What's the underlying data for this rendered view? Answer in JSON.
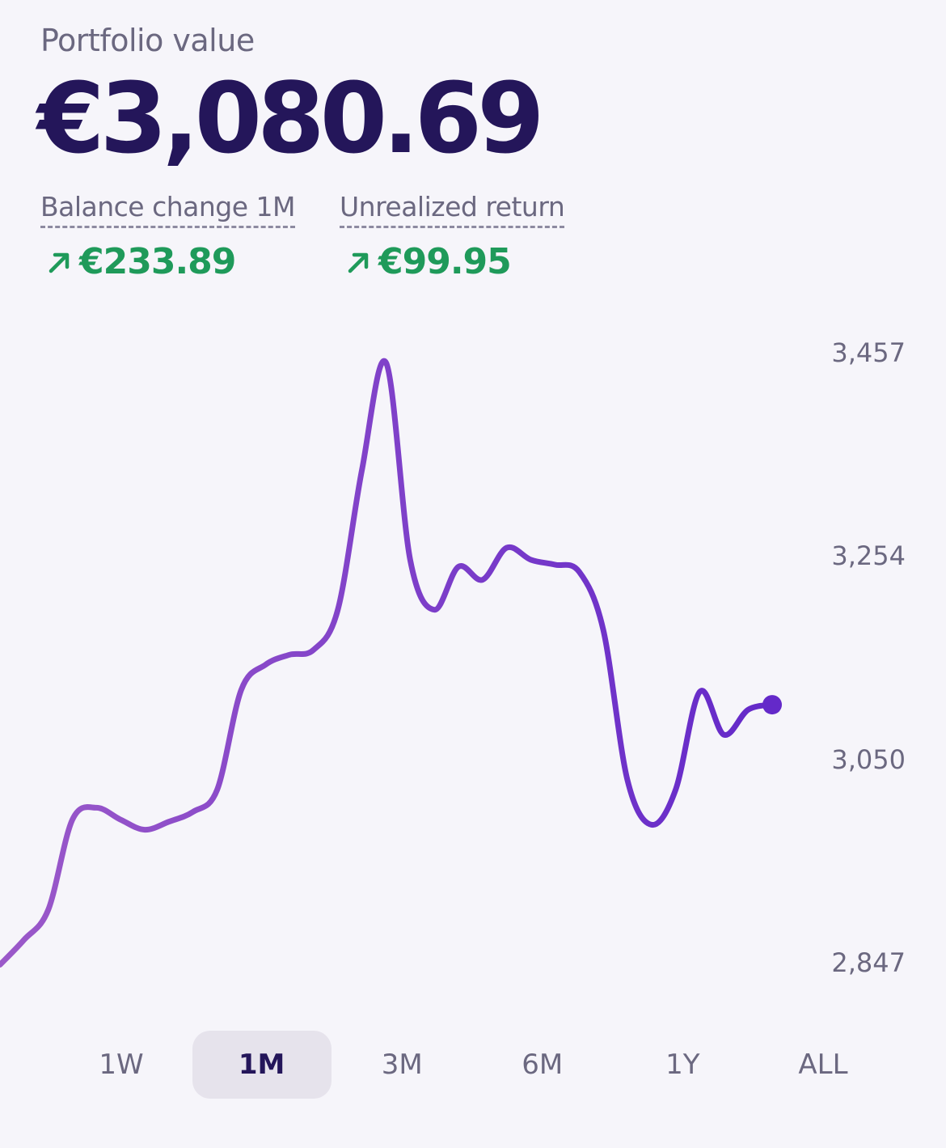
{
  "header": {
    "label": "Portfolio value",
    "value": "€3,080.69"
  },
  "metrics": [
    {
      "label": "Balance change 1M",
      "value": "€233.89",
      "direction": "up"
    },
    {
      "label": "Unrealized return",
      "value": "€99.95",
      "direction": "up"
    }
  ],
  "colors": {
    "positive": "#1f9a5a",
    "line_start": "#9b59c9",
    "line_end": "#6429c9",
    "title": "#24165a"
  },
  "chart_data": {
    "type": "line",
    "title": "",
    "xlabel": "",
    "ylabel": "",
    "ylim": [
      2847,
      3457
    ],
    "y_ticks": [
      "3,457",
      "3,254",
      "3,050",
      "2,847"
    ],
    "y_tick_values": [
      3457,
      3254,
      3050,
      2847
    ],
    "grid": false,
    "series": [
      {
        "values": [
          2845,
          2870,
          2900,
          2990,
          3002,
          2990,
          2980,
          2988,
          2998,
          3020,
          3120,
          3145,
          3155,
          3160,
          3200,
          3340,
          3447,
          3250,
          3200,
          3243,
          3230,
          3262,
          3250,
          3245,
          3238,
          3180,
          3030,
          2985,
          3020,
          3118,
          3075,
          3100,
          3105
        ]
      }
    ]
  },
  "ranges": {
    "options": [
      "1W",
      "1M",
      "3M",
      "6M",
      "1Y",
      "ALL"
    ],
    "selected": "1M"
  }
}
